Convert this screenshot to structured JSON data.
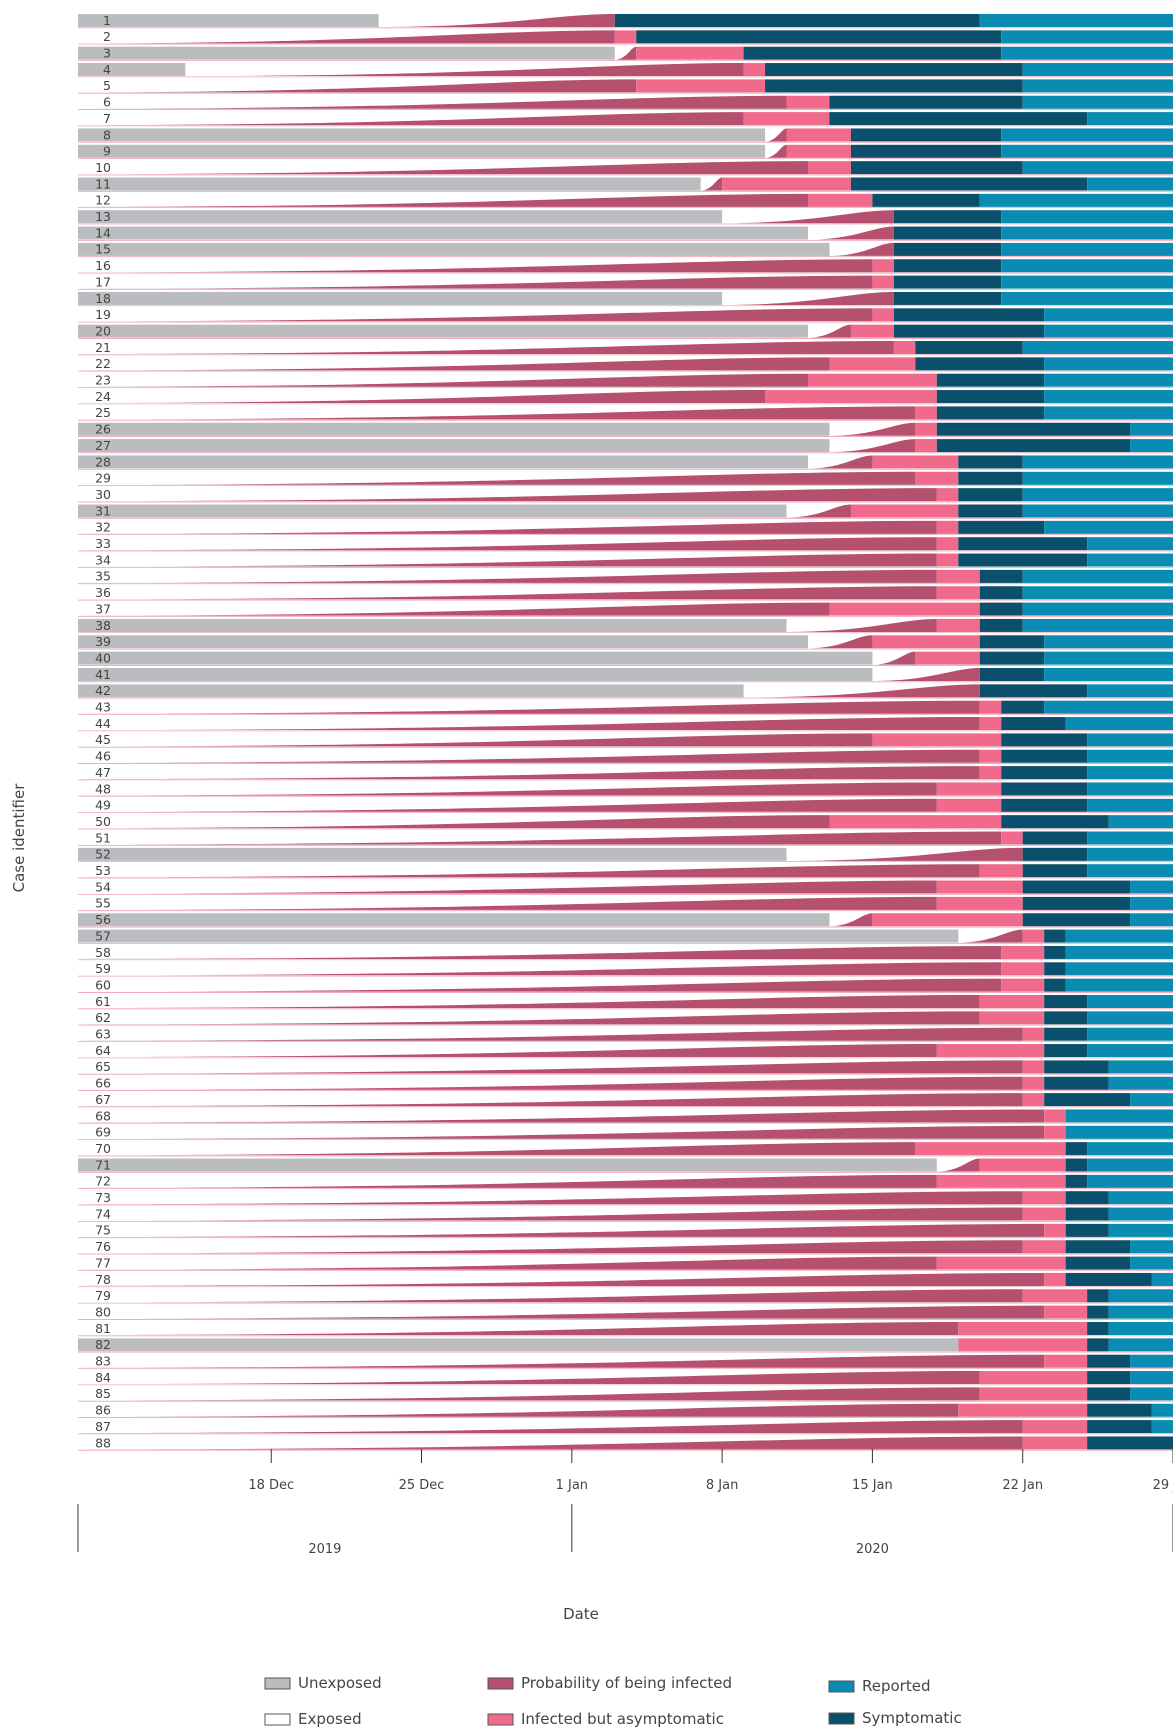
{
  "chart_data": {
    "type": "timeline",
    "xlabel": "Date",
    "ylabel": "Case identifier",
    "x_range": [
      "2019-12-09",
      "2020-01-29"
    ],
    "x_ticks": [
      {
        "date": "2019-12-18",
        "label": "18 Dec"
      },
      {
        "date": "2019-12-25",
        "label": "25 Dec"
      },
      {
        "date": "2020-01-01",
        "label": "1 Jan"
      },
      {
        "date": "2020-01-08",
        "label": "8 Jan"
      },
      {
        "date": "2020-01-15",
        "label": "15 Jan"
      },
      {
        "date": "2020-01-22",
        "label": "22 Jan"
      },
      {
        "date": "2020-01-29",
        "label": "29 Jan"
      }
    ],
    "years": [
      {
        "label": "2019",
        "from": "2019-12-09",
        "to": "2019-12-31"
      },
      {
        "label": "2020",
        "from": "2020-01-01",
        "to": "2020-01-29"
      }
    ],
    "colors": {
      "unexposed": "#bbbcc0",
      "exposed": "#ffffff",
      "probability": "#b5506e",
      "asymptomatic": "#f06a8b",
      "symptomatic": "#0a4f6b",
      "reported": "#0a8bb1",
      "rowline": "#f4a0b5"
    },
    "legend": [
      {
        "key": "unexposed",
        "label": "Unexposed"
      },
      {
        "key": "probability",
        "label": "Probability of being infected"
      },
      {
        "key": "reported",
        "label": "Reported"
      },
      {
        "key": "exposed",
        "label": "Exposed"
      },
      {
        "key": "asymptomatic",
        "label": "Infected but asymptomatic"
      },
      {
        "key": "symptomatic",
        "label": "Symptomatic"
      }
    ],
    "cases": [
      {
        "id": "1",
        "expStart": "2019-12-23",
        "infected": "2020-01-03",
        "symptomatic": "2020-01-03",
        "reported": "2020-01-20"
      },
      {
        "id": "2",
        "expStart": "2019-12-09",
        "infected": "2020-01-03",
        "symptomatic": "2020-01-04",
        "reported": "2020-01-21"
      },
      {
        "id": "3",
        "expStart": "2020-01-03",
        "infected": "2020-01-04",
        "symptomatic": "2020-01-09",
        "reported": "2020-01-21"
      },
      {
        "id": "4",
        "expStart": "2019-12-14",
        "infected": "2020-01-09",
        "symptomatic": "2020-01-10",
        "reported": "2020-01-22"
      },
      {
        "id": "5",
        "expStart": "2019-12-09",
        "infected": "2020-01-04",
        "symptomatic": "2020-01-10",
        "reported": "2020-01-22"
      },
      {
        "id": "6",
        "expStart": "2019-12-09",
        "infected": "2020-01-11",
        "symptomatic": "2020-01-13",
        "reported": "2020-01-22"
      },
      {
        "id": "7",
        "expStart": "2019-12-09",
        "infected": "2020-01-09",
        "symptomatic": "2020-01-13",
        "reported": "2020-01-25"
      },
      {
        "id": "8",
        "expStart": "2020-01-10",
        "infected": "2020-01-11",
        "symptomatic": "2020-01-14",
        "reported": "2020-01-21"
      },
      {
        "id": "9",
        "expStart": "2020-01-10",
        "infected": "2020-01-11",
        "symptomatic": "2020-01-14",
        "reported": "2020-01-21"
      },
      {
        "id": "10",
        "expStart": "2019-12-09",
        "infected": "2020-01-12",
        "symptomatic": "2020-01-14",
        "reported": "2020-01-22"
      },
      {
        "id": "11",
        "expStart": "2020-01-07",
        "infected": "2020-01-08",
        "symptomatic": "2020-01-14",
        "reported": "2020-01-25"
      },
      {
        "id": "12",
        "expStart": "2019-12-09",
        "infected": "2020-01-12",
        "symptomatic": "2020-01-15",
        "reported": "2020-01-20"
      },
      {
        "id": "13",
        "expStart": "2020-01-08",
        "infected": "2020-01-16",
        "symptomatic": "2020-01-16",
        "reported": "2020-01-21"
      },
      {
        "id": "14",
        "expStart": "2020-01-12",
        "infected": "2020-01-16",
        "symptomatic": "2020-01-16",
        "reported": "2020-01-21"
      },
      {
        "id": "15",
        "expStart": "2020-01-13",
        "infected": "2020-01-16",
        "symptomatic": "2020-01-16",
        "reported": "2020-01-21"
      },
      {
        "id": "16",
        "expStart": "2019-12-09",
        "infected": "2020-01-15",
        "symptomatic": "2020-01-16",
        "reported": "2020-01-21"
      },
      {
        "id": "17",
        "expStart": "2019-12-09",
        "infected": "2020-01-15",
        "symptomatic": "2020-01-16",
        "reported": "2020-01-21"
      },
      {
        "id": "18",
        "expStart": "2020-01-08",
        "infected": "2020-01-16",
        "symptomatic": "2020-01-16",
        "reported": "2020-01-21"
      },
      {
        "id": "19",
        "expStart": "2019-12-09",
        "infected": "2020-01-15",
        "symptomatic": "2020-01-16",
        "reported": "2020-01-23"
      },
      {
        "id": "20",
        "expStart": "2020-01-12",
        "infected": "2020-01-14",
        "symptomatic": "2020-01-16",
        "reported": "2020-01-23"
      },
      {
        "id": "21",
        "expStart": "2019-12-09",
        "infected": "2020-01-16",
        "symptomatic": "2020-01-17",
        "reported": "2020-01-22"
      },
      {
        "id": "22",
        "expStart": "2019-12-09",
        "infected": "2020-01-13",
        "symptomatic": "2020-01-17",
        "reported": "2020-01-23"
      },
      {
        "id": "23",
        "expStart": "2019-12-09",
        "infected": "2020-01-12",
        "symptomatic": "2020-01-18",
        "reported": "2020-01-23"
      },
      {
        "id": "24",
        "expStart": "2019-12-09",
        "infected": "2020-01-10",
        "symptomatic": "2020-01-18",
        "reported": "2020-01-23"
      },
      {
        "id": "25",
        "expStart": "2019-12-09",
        "infected": "2020-01-17",
        "symptomatic": "2020-01-18",
        "reported": "2020-01-23"
      },
      {
        "id": "26",
        "expStart": "2020-01-13",
        "infected": "2020-01-17",
        "symptomatic": "2020-01-18",
        "reported": "2020-01-27"
      },
      {
        "id": "27",
        "expStart": "2020-01-13",
        "infected": "2020-01-17",
        "symptomatic": "2020-01-18",
        "reported": "2020-01-27"
      },
      {
        "id": "28",
        "expStart": "2020-01-12",
        "infected": "2020-01-15",
        "symptomatic": "2020-01-19",
        "reported": "2020-01-22"
      },
      {
        "id": "29",
        "expStart": "2019-12-09",
        "infected": "2020-01-17",
        "symptomatic": "2020-01-19",
        "reported": "2020-01-22"
      },
      {
        "id": "30",
        "expStart": "2019-12-09",
        "infected": "2020-01-18",
        "symptomatic": "2020-01-19",
        "reported": "2020-01-22"
      },
      {
        "id": "31",
        "expStart": "2020-01-11",
        "infected": "2020-01-14",
        "symptomatic": "2020-01-19",
        "reported": "2020-01-22"
      },
      {
        "id": "32",
        "expStart": "2019-12-09",
        "infected": "2020-01-18",
        "symptomatic": "2020-01-19",
        "reported": "2020-01-23"
      },
      {
        "id": "33",
        "expStart": "2019-12-09",
        "infected": "2020-01-18",
        "symptomatic": "2020-01-19",
        "reported": "2020-01-25"
      },
      {
        "id": "34",
        "expStart": "2019-12-09",
        "infected": "2020-01-18",
        "symptomatic": "2020-01-19",
        "reported": "2020-01-25"
      },
      {
        "id": "35",
        "expStart": "2019-12-09",
        "infected": "2020-01-18",
        "symptomatic": "2020-01-20",
        "reported": "2020-01-22"
      },
      {
        "id": "36",
        "expStart": "2019-12-09",
        "infected": "2020-01-18",
        "symptomatic": "2020-01-20",
        "reported": "2020-01-22"
      },
      {
        "id": "37",
        "expStart": "2019-12-09",
        "infected": "2020-01-13",
        "symptomatic": "2020-01-20",
        "reported": "2020-01-22"
      },
      {
        "id": "38",
        "expStart": "2020-01-11",
        "infected": "2020-01-18",
        "symptomatic": "2020-01-20",
        "reported": "2020-01-22"
      },
      {
        "id": "39",
        "expStart": "2020-01-12",
        "infected": "2020-01-15",
        "symptomatic": "2020-01-20",
        "reported": "2020-01-23"
      },
      {
        "id": "40",
        "expStart": "2020-01-15",
        "infected": "2020-01-17",
        "symptomatic": "2020-01-20",
        "reported": "2020-01-23"
      },
      {
        "id": "41",
        "expStart": "2020-01-15",
        "infected": "2020-01-20",
        "symptomatic": "2020-01-20",
        "reported": "2020-01-23"
      },
      {
        "id": "42",
        "expStart": "2020-01-09",
        "infected": "2020-01-20",
        "symptomatic": "2020-01-20",
        "reported": "2020-01-25"
      },
      {
        "id": "43",
        "expStart": "2019-12-09",
        "infected": "2020-01-20",
        "symptomatic": "2020-01-21",
        "reported": "2020-01-23"
      },
      {
        "id": "44",
        "expStart": "2019-12-09",
        "infected": "2020-01-20",
        "symptomatic": "2020-01-21",
        "reported": "2020-01-24"
      },
      {
        "id": "45",
        "expStart": "2019-12-09",
        "infected": "2020-01-15",
        "symptomatic": "2020-01-21",
        "reported": "2020-01-25"
      },
      {
        "id": "46",
        "expStart": "2019-12-09",
        "infected": "2020-01-20",
        "symptomatic": "2020-01-21",
        "reported": "2020-01-25"
      },
      {
        "id": "47",
        "expStart": "2019-12-09",
        "infected": "2020-01-20",
        "symptomatic": "2020-01-21",
        "reported": "2020-01-25"
      },
      {
        "id": "48",
        "expStart": "2019-12-09",
        "infected": "2020-01-18",
        "symptomatic": "2020-01-21",
        "reported": "2020-01-25"
      },
      {
        "id": "49",
        "expStart": "2019-12-09",
        "infected": "2020-01-18",
        "symptomatic": "2020-01-21",
        "reported": "2020-01-25"
      },
      {
        "id": "50",
        "expStart": "2019-12-09",
        "infected": "2020-01-13",
        "symptomatic": "2020-01-21",
        "reported": "2020-01-26"
      },
      {
        "id": "51",
        "expStart": "2019-12-09",
        "infected": "2020-01-21",
        "symptomatic": "2020-01-22",
        "reported": "2020-01-25"
      },
      {
        "id": "52",
        "expStart": "2020-01-11",
        "infected": "2020-01-22",
        "symptomatic": "2020-01-22",
        "reported": "2020-01-25"
      },
      {
        "id": "53",
        "expStart": "2019-12-09",
        "infected": "2020-01-20",
        "symptomatic": "2020-01-22",
        "reported": "2020-01-25"
      },
      {
        "id": "54",
        "expStart": "2019-12-09",
        "infected": "2020-01-18",
        "symptomatic": "2020-01-22",
        "reported": "2020-01-27"
      },
      {
        "id": "55",
        "expStart": "2019-12-09",
        "infected": "2020-01-18",
        "symptomatic": "2020-01-22",
        "reported": "2020-01-27"
      },
      {
        "id": "56",
        "expStart": "2020-01-13",
        "infected": "2020-01-15",
        "symptomatic": "2020-01-22",
        "reported": "2020-01-27"
      },
      {
        "id": "57",
        "expStart": "2020-01-19",
        "infected": "2020-01-22",
        "symptomatic": "2020-01-23",
        "reported": "2020-01-24"
      },
      {
        "id": "58",
        "expStart": "2019-12-09",
        "infected": "2020-01-21",
        "symptomatic": "2020-01-23",
        "reported": "2020-01-24"
      },
      {
        "id": "59",
        "expStart": "2019-12-09",
        "infected": "2020-01-21",
        "symptomatic": "2020-01-23",
        "reported": "2020-01-24"
      },
      {
        "id": "60",
        "expStart": "2019-12-09",
        "infected": "2020-01-21",
        "symptomatic": "2020-01-23",
        "reported": "2020-01-24"
      },
      {
        "id": "61",
        "expStart": "2019-12-09",
        "infected": "2020-01-20",
        "symptomatic": "2020-01-23",
        "reported": "2020-01-25"
      },
      {
        "id": "62",
        "expStart": "2019-12-09",
        "infected": "2020-01-20",
        "symptomatic": "2020-01-23",
        "reported": "2020-01-25"
      },
      {
        "id": "63",
        "expStart": "2019-12-09",
        "infected": "2020-01-22",
        "symptomatic": "2020-01-23",
        "reported": "2020-01-25"
      },
      {
        "id": "64",
        "expStart": "2019-12-09",
        "infected": "2020-01-18",
        "symptomatic": "2020-01-23",
        "reported": "2020-01-25"
      },
      {
        "id": "65",
        "expStart": "2019-12-09",
        "infected": "2020-01-22",
        "symptomatic": "2020-01-23",
        "reported": "2020-01-26"
      },
      {
        "id": "66",
        "expStart": "2019-12-09",
        "infected": "2020-01-22",
        "symptomatic": "2020-01-23",
        "reported": "2020-01-26"
      },
      {
        "id": "67",
        "expStart": "2019-12-09",
        "infected": "2020-01-22",
        "symptomatic": "2020-01-23",
        "reported": "2020-01-27"
      },
      {
        "id": "68",
        "expStart": "2019-12-09",
        "infected": "2020-01-23",
        "symptomatic": "2020-01-24",
        "reported": "2020-01-24"
      },
      {
        "id": "69",
        "expStart": "2019-12-09",
        "infected": "2020-01-23",
        "symptomatic": "2020-01-24",
        "reported": "2020-01-24"
      },
      {
        "id": "70",
        "expStart": "2019-12-09",
        "infected": "2020-01-17",
        "symptomatic": "2020-01-24",
        "reported": "2020-01-25"
      },
      {
        "id": "71",
        "expStart": "2020-01-18",
        "infected": "2020-01-20",
        "symptomatic": "2020-01-24",
        "reported": "2020-01-25"
      },
      {
        "id": "72",
        "expStart": "2019-12-09",
        "infected": "2020-01-18",
        "symptomatic": "2020-01-24",
        "reported": "2020-01-25"
      },
      {
        "id": "73",
        "expStart": "2019-12-09",
        "infected": "2020-01-22",
        "symptomatic": "2020-01-24",
        "reported": "2020-01-26"
      },
      {
        "id": "74",
        "expStart": "2019-12-09",
        "infected": "2020-01-22",
        "symptomatic": "2020-01-24",
        "reported": "2020-01-26"
      },
      {
        "id": "75",
        "expStart": "2019-12-09",
        "infected": "2020-01-23",
        "symptomatic": "2020-01-24",
        "reported": "2020-01-26"
      },
      {
        "id": "76",
        "expStart": "2019-12-09",
        "infected": "2020-01-22",
        "symptomatic": "2020-01-24",
        "reported": "2020-01-27"
      },
      {
        "id": "77",
        "expStart": "2019-12-09",
        "infected": "2020-01-18",
        "symptomatic": "2020-01-24",
        "reported": "2020-01-27"
      },
      {
        "id": "78",
        "expStart": "2019-12-09",
        "infected": "2020-01-23",
        "symptomatic": "2020-01-24",
        "reported": "2020-01-28"
      },
      {
        "id": "79",
        "expStart": "2019-12-09",
        "infected": "2020-01-22",
        "symptomatic": "2020-01-25",
        "reported": "2020-01-26"
      },
      {
        "id": "80",
        "expStart": "2019-12-09",
        "infected": "2020-01-23",
        "symptomatic": "2020-01-25",
        "reported": "2020-01-26"
      },
      {
        "id": "81",
        "expStart": "2019-12-09",
        "infected": "2020-01-19",
        "symptomatic": "2020-01-25",
        "reported": "2020-01-26"
      },
      {
        "id": "82",
        "expStart": "2020-01-19",
        "infected": "2020-01-19",
        "symptomatic": "2020-01-25",
        "reported": "2020-01-26"
      },
      {
        "id": "83",
        "expStart": "2019-12-09",
        "infected": "2020-01-23",
        "symptomatic": "2020-01-25",
        "reported": "2020-01-27"
      },
      {
        "id": "84",
        "expStart": "2019-12-09",
        "infected": "2020-01-20",
        "symptomatic": "2020-01-25",
        "reported": "2020-01-27"
      },
      {
        "id": "85",
        "expStart": "2019-12-09",
        "infected": "2020-01-20",
        "symptomatic": "2020-01-25",
        "reported": "2020-01-27"
      },
      {
        "id": "86",
        "expStart": "2019-12-09",
        "infected": "2020-01-19",
        "symptomatic": "2020-01-25",
        "reported": "2020-01-28"
      },
      {
        "id": "87",
        "expStart": "2019-12-09",
        "infected": "2020-01-22",
        "symptomatic": "2020-01-25",
        "reported": "2020-01-28"
      },
      {
        "id": "88",
        "expStart": "2019-12-09",
        "infected": "2020-01-22",
        "symptomatic": "2020-01-25",
        "reported": "2020-01-29"
      }
    ]
  }
}
